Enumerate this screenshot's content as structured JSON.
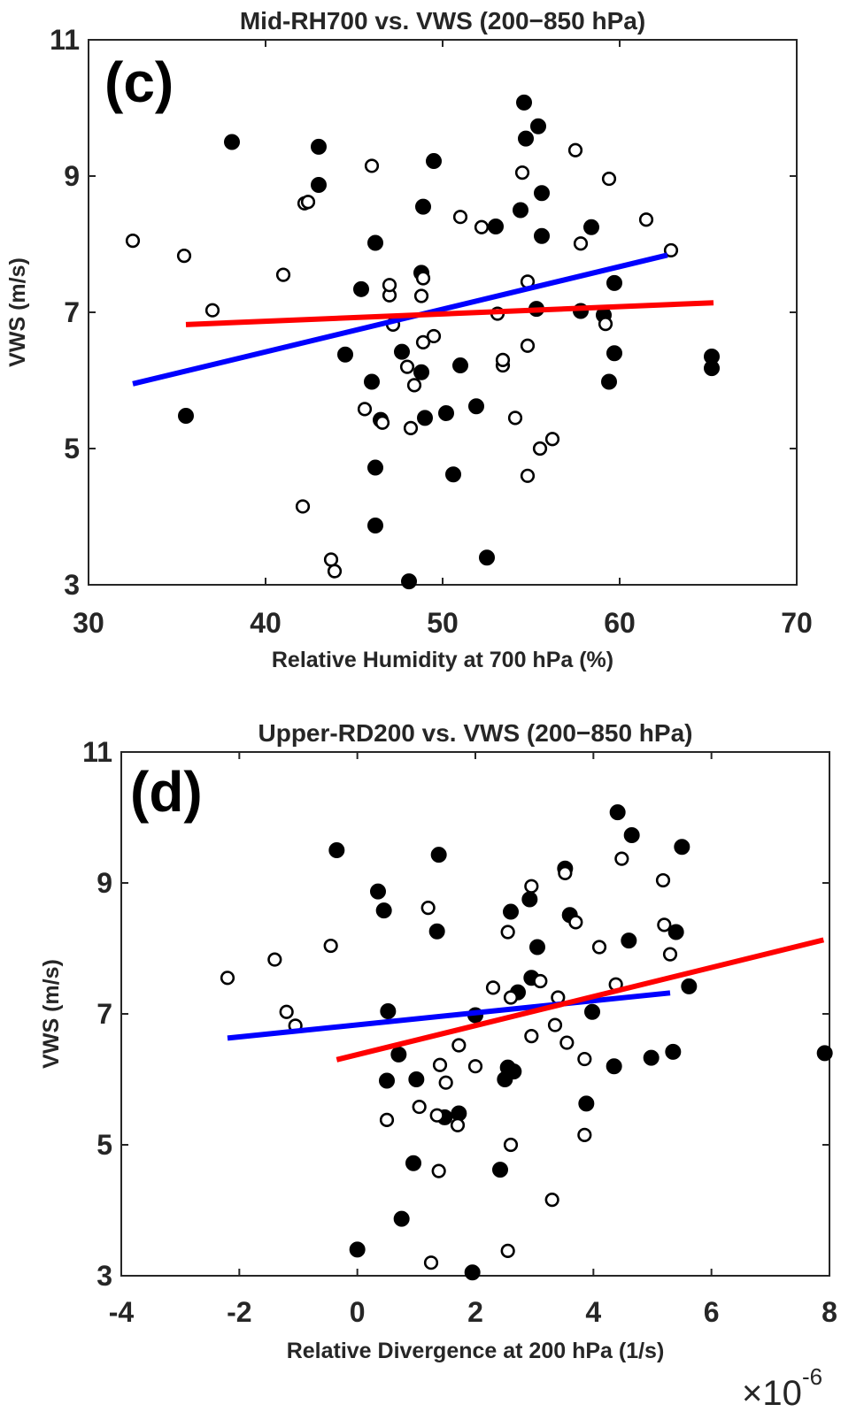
{
  "chart_data": [
    {
      "id": "c",
      "type": "scatter",
      "panel_label": "(c)",
      "title": "Mid-RH700 vs. VWS (200−850 hPa)",
      "xlabel": "Relative Humidity at 700 hPa (%)",
      "ylabel": "VWS (m/s)",
      "xlim": [
        30,
        70
      ],
      "ylim": [
        3,
        11
      ],
      "xticks": [
        30,
        40,
        50,
        60,
        70
      ],
      "xtick_labels": [
        "30",
        "40",
        "50",
        "60",
        "70"
      ],
      "yticks": [
        3,
        5,
        7,
        9,
        11
      ],
      "ytick_labels": [
        "3",
        "5",
        "7",
        "9",
        "11"
      ],
      "multiplier": null,
      "series": [
        {
          "name": "filled",
          "marker": "filled-circle",
          "color": "#000000",
          "points": [
            [
              35.5,
              5.48
            ],
            [
              38.1,
              9.5
            ],
            [
              43.0,
              9.43
            ],
            [
              43.0,
              8.87
            ],
            [
              44.5,
              6.38
            ],
            [
              45.4,
              7.34
            ],
            [
              46.0,
              5.98
            ],
            [
              46.2,
              8.02
            ],
            [
              46.2,
              4.72
            ],
            [
              46.2,
              3.87
            ],
            [
              46.5,
              5.42
            ],
            [
              47.7,
              6.42
            ],
            [
              48.1,
              3.05
            ],
            [
              48.8,
              7.58
            ],
            [
              48.8,
              6.12
            ],
            [
              48.9,
              8.55
            ],
            [
              49.0,
              5.45
            ],
            [
              49.5,
              9.22
            ],
            [
              50.2,
              5.52
            ],
            [
              50.6,
              4.62
            ],
            [
              51.0,
              6.22
            ],
            [
              51.9,
              5.62
            ],
            [
              52.5,
              3.4
            ],
            [
              53.0,
              8.26
            ],
            [
              54.4,
              8.5
            ],
            [
              54.6,
              10.08
            ],
            [
              54.7,
              9.55
            ],
            [
              55.3,
              7.05
            ],
            [
              55.4,
              9.73
            ],
            [
              55.6,
              8.12
            ],
            [
              55.6,
              8.75
            ],
            [
              57.8,
              7.02
            ],
            [
              58.4,
              8.25
            ],
            [
              59.1,
              6.96
            ],
            [
              59.4,
              5.98
            ],
            [
              59.7,
              6.4
            ],
            [
              59.7,
              7.43
            ],
            [
              65.2,
              6.35
            ],
            [
              65.2,
              6.18
            ]
          ]
        },
        {
          "name": "open",
          "marker": "open-circle",
          "color": "#000000",
          "points": [
            [
              32.5,
              8.05
            ],
            [
              35.4,
              7.83
            ],
            [
              37.0,
              7.03
            ],
            [
              41.0,
              7.55
            ],
            [
              42.1,
              4.15
            ],
            [
              42.2,
              8.6
            ],
            [
              42.4,
              8.62
            ],
            [
              43.7,
              3.37
            ],
            [
              43.9,
              3.2
            ],
            [
              45.6,
              5.58
            ],
            [
              46.0,
              9.15
            ],
            [
              46.6,
              5.38
            ],
            [
              47.0,
              7.25
            ],
            [
              47.0,
              7.4
            ],
            [
              47.2,
              6.82
            ],
            [
              48.0,
              6.2
            ],
            [
              48.2,
              5.3
            ],
            [
              48.4,
              5.93
            ],
            [
              48.8,
              7.24
            ],
            [
              48.9,
              7.5
            ],
            [
              48.9,
              6.56
            ],
            [
              49.5,
              6.65
            ],
            [
              51.0,
              8.4
            ],
            [
              52.2,
              8.25
            ],
            [
              53.1,
              6.98
            ],
            [
              53.4,
              6.22
            ],
            [
              53.4,
              6.3
            ],
            [
              54.1,
              5.45
            ],
            [
              54.5,
              9.05
            ],
            [
              54.8,
              6.51
            ],
            [
              54.8,
              7.45
            ],
            [
              54.8,
              4.6
            ],
            [
              55.5,
              5.0
            ],
            [
              56.2,
              5.14
            ],
            [
              57.5,
              9.38
            ],
            [
              57.8,
              8.01
            ],
            [
              59.2,
              6.83
            ],
            [
              59.4,
              8.96
            ],
            [
              61.5,
              8.36
            ],
            [
              62.9,
              7.91
            ]
          ]
        }
      ],
      "fit_lines": [
        {
          "name": "blue-fit",
          "color": "#0000ff",
          "x": [
            32.5,
            62.7
          ],
          "y": [
            5.95,
            7.84
          ]
        },
        {
          "name": "red-fit",
          "color": "#ff0000",
          "x": [
            35.5,
            65.3
          ],
          "y": [
            6.82,
            7.14
          ]
        }
      ]
    },
    {
      "id": "d",
      "type": "scatter",
      "panel_label": "(d)",
      "title": "Upper-RD200 vs. VWS (200−850 hPa)",
      "xlabel": "Relative Divergence at 200 hPa (1/s)",
      "ylabel": "VWS (m/s)",
      "xlim": [
        -4,
        8
      ],
      "ylim": [
        3,
        11
      ],
      "xticks": [
        -4,
        -2,
        0,
        2,
        4,
        6,
        8
      ],
      "xtick_labels": [
        "-4",
        "-2",
        "0",
        "2",
        "4",
        "6",
        "8"
      ],
      "yticks": [
        3,
        5,
        7,
        9,
        11
      ],
      "ytick_labels": [
        "3",
        "5",
        "7",
        "9",
        "11"
      ],
      "multiplier": {
        "base": "×10",
        "exponent": "-6"
      },
      "series": [
        {
          "name": "filled",
          "marker": "filled-circle",
          "color": "#000000",
          "points": [
            [
              -0.35,
              9.5
            ],
            [
              0.0,
              3.4
            ],
            [
              0.35,
              8.87
            ],
            [
              0.45,
              8.58
            ],
            [
              0.5,
              5.98
            ],
            [
              0.52,
              7.04
            ],
            [
              0.7,
              6.38
            ],
            [
              0.75,
              3.87
            ],
            [
              0.95,
              4.72
            ],
            [
              1.0,
              6.0
            ],
            [
              1.35,
              8.26
            ],
            [
              1.38,
              9.43
            ],
            [
              1.48,
              5.42
            ],
            [
              1.72,
              5.48
            ],
            [
              1.95,
              3.05
            ],
            [
              2.0,
              6.98
            ],
            [
              2.42,
              4.62
            ],
            [
              2.5,
              6.0
            ],
            [
              2.55,
              6.18
            ],
            [
              2.6,
              8.56
            ],
            [
              2.65,
              6.12
            ],
            [
              2.72,
              7.33
            ],
            [
              2.92,
              8.75
            ],
            [
              2.95,
              7.55
            ],
            [
              3.05,
              8.02
            ],
            [
              3.52,
              9.22
            ],
            [
              3.6,
              8.51
            ],
            [
              3.88,
              5.63
            ],
            [
              3.98,
              7.03
            ],
            [
              4.35,
              6.2
            ],
            [
              4.41,
              10.08
            ],
            [
              4.6,
              8.12
            ],
            [
              4.65,
              9.73
            ],
            [
              4.98,
              6.33
            ],
            [
              5.35,
              6.42
            ],
            [
              5.4,
              8.25
            ],
            [
              5.5,
              9.55
            ],
            [
              5.62,
              7.42
            ],
            [
              7.92,
              6.4
            ]
          ]
        },
        {
          "name": "open",
          "marker": "open-circle",
          "color": "#000000",
          "points": [
            [
              -2.2,
              7.55
            ],
            [
              -1.4,
              7.83
            ],
            [
              -1.2,
              7.03
            ],
            [
              -1.05,
              6.82
            ],
            [
              -0.45,
              8.04
            ],
            [
              0.5,
              5.38
            ],
            [
              1.05,
              5.58
            ],
            [
              1.2,
              8.62
            ],
            [
              1.25,
              3.2
            ],
            [
              1.35,
              5.45
            ],
            [
              1.38,
              4.6
            ],
            [
              1.4,
              6.22
            ],
            [
              1.5,
              5.95
            ],
            [
              1.7,
              5.3
            ],
            [
              1.72,
              6.52
            ],
            [
              2.0,
              6.2
            ],
            [
              2.3,
              7.4
            ],
            [
              2.55,
              8.25
            ],
            [
              2.55,
              3.38
            ],
            [
              2.6,
              7.25
            ],
            [
              2.6,
              5.0
            ],
            [
              2.95,
              8.95
            ],
            [
              2.95,
              6.66
            ],
            [
              3.1,
              7.5
            ],
            [
              3.3,
              4.16
            ],
            [
              3.35,
              6.83
            ],
            [
              3.4,
              7.25
            ],
            [
              3.52,
              9.15
            ],
            [
              3.55,
              6.56
            ],
            [
              3.7,
              8.4
            ],
            [
              3.85,
              6.31
            ],
            [
              3.85,
              5.15
            ],
            [
              4.1,
              8.02
            ],
            [
              4.38,
              7.45
            ],
            [
              4.48,
              9.37
            ],
            [
              5.18,
              9.04
            ],
            [
              5.2,
              8.36
            ],
            [
              5.3,
              7.91
            ]
          ]
        }
      ],
      "fit_lines": [
        {
          "name": "blue-fit",
          "color": "#0000ff",
          "x": [
            -2.2,
            5.3
          ],
          "y": [
            6.63,
            7.32
          ]
        },
        {
          "name": "red-fit",
          "color": "#ff0000",
          "x": [
            -0.35,
            7.9
          ],
          "y": [
            6.3,
            8.13
          ]
        }
      ]
    }
  ]
}
